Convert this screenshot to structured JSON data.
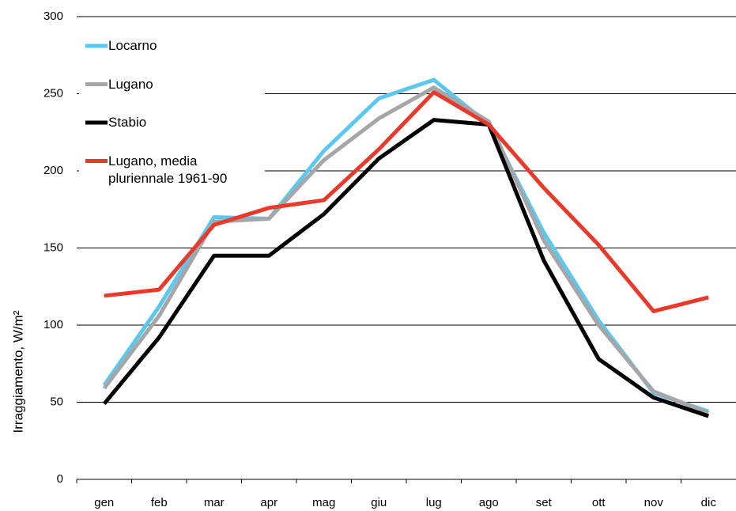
{
  "chart_data": {
    "type": "line",
    "y_label": "Irraggiamento, W/m²",
    "categories": [
      "gen",
      "feb",
      "mar",
      "apr",
      "mag",
      "giu",
      "lug",
      "ago",
      "set",
      "ott",
      "nov",
      "dic"
    ],
    "series": [
      {
        "name": "Locarno",
        "color": "#5bc8f0",
        "values": [
          61,
          112,
          170,
          169,
          213,
          247,
          259,
          230,
          160,
          103,
          56,
          44
        ]
      },
      {
        "name": "Lugano",
        "color": "#a6a6a8",
        "values": [
          59,
          106,
          167,
          169,
          207,
          234,
          254,
          232,
          155,
          100,
          57,
          43
        ]
      },
      {
        "name": "Stabio",
        "color": "#000000",
        "values": [
          49,
          92,
          145,
          145,
          172,
          208,
          233,
          230,
          142,
          78,
          53,
          41
        ]
      },
      {
        "name": "Lugano, media pluriennale 1961-90",
        "color": "#e8392a",
        "values": [
          119,
          123,
          165,
          176,
          181,
          214,
          251,
          230,
          189,
          152,
          109,
          118
        ]
      }
    ],
    "ylim": [
      0,
      300
    ],
    "yticks": [
      0,
      50,
      100,
      150,
      200,
      250,
      300
    ],
    "grid": true,
    "legend": "top-left"
  }
}
